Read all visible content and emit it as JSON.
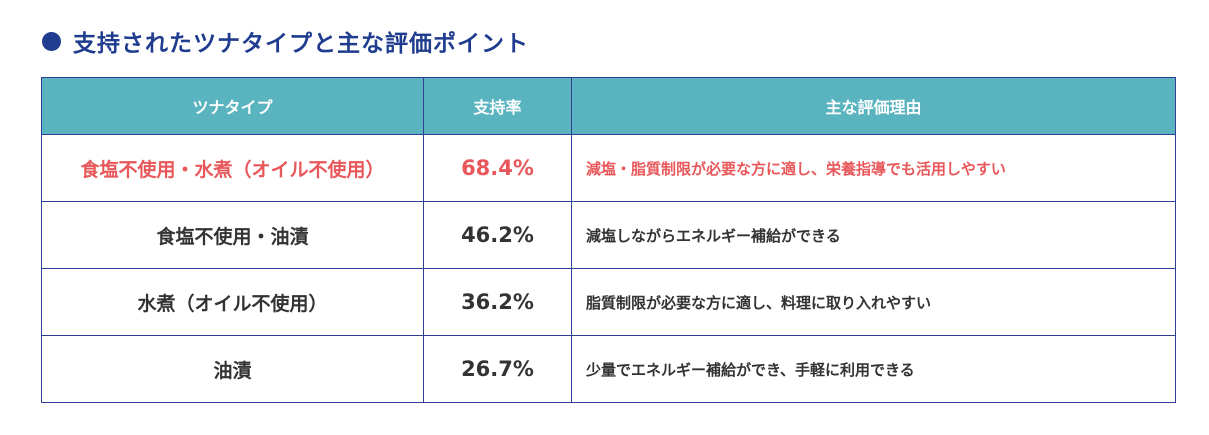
{
  "heading": {
    "title": "支持されたツナタイプと主な評価ポイント"
  },
  "table": {
    "headers": [
      "ツナタイプ",
      "支持率",
      "主な評価理由"
    ],
    "rows": [
      {
        "type": "食塩不使用・水煮（オイル不使用）",
        "rate": "68.4%",
        "reason": "減塩・脂質制限が必要な方に適し、栄養指導でも活用しやすい",
        "highlight": true
      },
      {
        "type": "食塩不使用・油漬",
        "rate": "46.2%",
        "reason": "減塩しながらエネルギー補給ができる",
        "highlight": false
      },
      {
        "type": "水煮（オイル不使用）",
        "rate": "36.2%",
        "reason": "脂質制限が必要な方に適し、料理に取り入れやすい",
        "highlight": false
      },
      {
        "type": "油漬",
        "rate": "26.7%",
        "reason": "少量でエネルギー補給ができ、手軽に利用できる",
        "highlight": false
      }
    ]
  },
  "colors": {
    "heading": "#1f3c8f",
    "header_bg": "#5ab4bf",
    "border": "#2f3f96",
    "highlight_text": "#e8575a",
    "body_text": "#333333"
  }
}
